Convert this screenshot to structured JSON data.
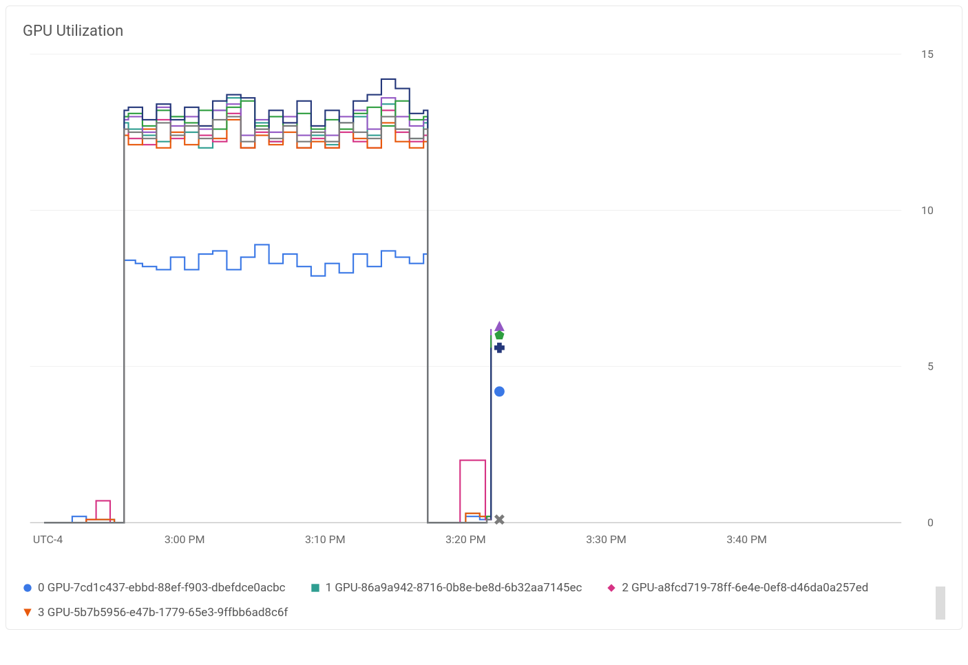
{
  "title": "GPU Utilization",
  "background_color": "#ffffff",
  "grid_color": "#f0f0f0",
  "baseline_color": "#c0c0c0",
  "text_color": "#666666",
  "line_width": 2,
  "chart": {
    "type": "line",
    "x_domain_minutes": [
      -11,
      51
    ],
    "x_ticks": [
      {
        "minute": 0,
        "label": "3:00 PM"
      },
      {
        "minute": 10,
        "label": "3:10 PM"
      },
      {
        "minute": 20,
        "label": "3:20 PM"
      },
      {
        "minute": 30,
        "label": "3:30 PM"
      },
      {
        "minute": 40,
        "label": "3:40 PM"
      }
    ],
    "tz_label": "UTC-4",
    "y_domain": [
      0,
      15
    ],
    "y_ticks": [
      0,
      5,
      10,
      15
    ]
  },
  "series": [
    {
      "id": "gpu-0",
      "marker": "circle",
      "color": "#3a78e6",
      "label": "0 GPU-7cd1c437-ebbd-88ef-f903-dbefdce0acbc",
      "points": [
        [
          -10,
          0
        ],
        [
          -8,
          0.2
        ],
        [
          -7,
          0.1
        ],
        [
          -5,
          0
        ],
        [
          -4.5,
          0
        ],
        [
          -4.3,
          8.4
        ],
        [
          -3.5,
          8.3
        ],
        [
          -3,
          8.2
        ],
        [
          -2,
          8.1
        ],
        [
          -1,
          8.5
        ],
        [
          0,
          8.1
        ],
        [
          1,
          8.6
        ],
        [
          2,
          8.7
        ],
        [
          3,
          8.1
        ],
        [
          4,
          8.5
        ],
        [
          5,
          8.9
        ],
        [
          6,
          8.3
        ],
        [
          7,
          8.6
        ],
        [
          8,
          8.2
        ],
        [
          9,
          7.9
        ],
        [
          10,
          8.3
        ],
        [
          11,
          8.0
        ],
        [
          12,
          8.6
        ],
        [
          13,
          8.2
        ],
        [
          14,
          8.7
        ],
        [
          15,
          8.5
        ],
        [
          16,
          8.3
        ],
        [
          17,
          8.6
        ],
        [
          17.2,
          8.6
        ],
        [
          17.3,
          0
        ],
        [
          19,
          0
        ],
        [
          19.2,
          0
        ],
        [
          20,
          0.2
        ],
        [
          21,
          0.1
        ],
        [
          21.5,
          0.1
        ],
        [
          21.7,
          0.1
        ],
        [
          21.8,
          4.2
        ]
      ],
      "end_marker": {
        "x": 22.4,
        "y": 4.2
      }
    },
    {
      "id": "gpu-1",
      "marker": "square",
      "color": "#2f9e91",
      "label": "1 GPU-86a9a942-8716-0b8e-be8d-6b32aa7145ec",
      "points": [
        [
          -10,
          0
        ],
        [
          -7,
          0.1
        ],
        [
          -5,
          0
        ],
        [
          -4.5,
          0
        ],
        [
          -4.3,
          12.8
        ],
        [
          -4,
          12.6
        ],
        [
          -3,
          12.4
        ],
        [
          -2,
          12.2
        ],
        [
          -1,
          13.0
        ],
        [
          0,
          12.5
        ],
        [
          1,
          12.0
        ],
        [
          2,
          13.2
        ],
        [
          3,
          13.6
        ],
        [
          4,
          12.0
        ],
        [
          5,
          12.8
        ],
        [
          6,
          12.2
        ],
        [
          7,
          12.7
        ],
        [
          8,
          12.0
        ],
        [
          9,
          12.4
        ],
        [
          10,
          12.1
        ],
        [
          11,
          12.8
        ],
        [
          12,
          13.0
        ],
        [
          13,
          12.4
        ],
        [
          14,
          13.4
        ],
        [
          15,
          12.6
        ],
        [
          16,
          12.3
        ],
        [
          17,
          12.8
        ],
        [
          17.2,
          12.8
        ],
        [
          17.3,
          0
        ],
        [
          19,
          0
        ],
        [
          20,
          0.3
        ],
        [
          21,
          0.2
        ],
        [
          21.5,
          0.2
        ],
        [
          21.7,
          0.2
        ],
        [
          21.8,
          5.8
        ]
      ]
    },
    {
      "id": "gpu-2",
      "marker": "diamond",
      "color": "#d63384",
      "label": "2 GPU-a8fcd719-78ff-6e4e-0ef8-d46da0a257ed",
      "points": [
        [
          -10,
          0
        ],
        [
          -7,
          0.1
        ],
        [
          -6.5,
          0.1
        ],
        [
          -6.3,
          0.7
        ],
        [
          -5.5,
          0.7
        ],
        [
          -5.3,
          0
        ],
        [
          -4.5,
          0
        ],
        [
          -4.3,
          12.6
        ],
        [
          -4,
          12.3
        ],
        [
          -3,
          12.1
        ],
        [
          -2,
          12.9
        ],
        [
          -1,
          12.3
        ],
        [
          0,
          12.7
        ],
        [
          1,
          12.4
        ],
        [
          2,
          12.2
        ],
        [
          3,
          13.1
        ],
        [
          4,
          12.0
        ],
        [
          5,
          12.5
        ],
        [
          6,
          12.2
        ],
        [
          7,
          12.8
        ],
        [
          8,
          12.0
        ],
        [
          9,
          12.3
        ],
        [
          10,
          12.0
        ],
        [
          11,
          12.5
        ],
        [
          12,
          12.2
        ],
        [
          13,
          12.0
        ],
        [
          14,
          13.2
        ],
        [
          15,
          12.5
        ],
        [
          16,
          12.2
        ],
        [
          17,
          12.4
        ],
        [
          17.2,
          12.4
        ],
        [
          17.3,
          0
        ],
        [
          19,
          0
        ],
        [
          19.5,
          0
        ],
        [
          19.6,
          2.0
        ],
        [
          21.3,
          2.0
        ],
        [
          21.4,
          0.1
        ],
        [
          21.7,
          0.1
        ],
        [
          21.8,
          5.9
        ]
      ]
    },
    {
      "id": "gpu-3",
      "marker": "triangle-down",
      "color": "#e8590c",
      "label": "3 GPU-5b7b5956-e47b-1779-65e3-9ffbb6ad8c6f",
      "points": [
        [
          -10,
          0
        ],
        [
          -7,
          0.1
        ],
        [
          -5,
          0
        ],
        [
          -4.5,
          0
        ],
        [
          -4.3,
          12.4
        ],
        [
          -4,
          12.1
        ],
        [
          -3,
          12.6
        ],
        [
          -2,
          12.0
        ],
        [
          -1,
          12.5
        ],
        [
          0,
          12.1
        ],
        [
          1,
          12.7
        ],
        [
          2,
          12.3
        ],
        [
          3,
          12.9
        ],
        [
          4,
          12.0
        ],
        [
          5,
          12.4
        ],
        [
          6,
          12.1
        ],
        [
          7,
          12.5
        ],
        [
          8,
          12.0
        ],
        [
          9,
          12.2
        ],
        [
          10,
          12.0
        ],
        [
          11,
          12.6
        ],
        [
          12,
          12.3
        ],
        [
          13,
          12.0
        ],
        [
          14,
          12.8
        ],
        [
          15,
          12.2
        ],
        [
          16,
          12.0
        ],
        [
          17,
          12.2
        ],
        [
          17.2,
          12.2
        ],
        [
          17.3,
          0
        ],
        [
          19,
          0
        ],
        [
          20,
          0.3
        ],
        [
          21,
          0.2
        ],
        [
          21.5,
          0.2
        ],
        [
          21.7,
          0.2
        ],
        [
          21.8,
          5.7
        ]
      ]
    },
    {
      "id": "gpu-4",
      "marker": "triangle-up",
      "color": "#9358c4",
      "label": "",
      "points": [
        [
          -10,
          0
        ],
        [
          -5,
          0
        ],
        [
          -4.5,
          0
        ],
        [
          -4.3,
          12.9
        ],
        [
          -4,
          13.0
        ],
        [
          -3,
          12.5
        ],
        [
          -2,
          13.3
        ],
        [
          -1,
          12.7
        ],
        [
          0,
          13.0
        ],
        [
          1,
          12.6
        ],
        [
          2,
          13.2
        ],
        [
          3,
          13.4
        ],
        [
          4,
          12.4
        ],
        [
          5,
          12.9
        ],
        [
          6,
          12.5
        ],
        [
          7,
          13.0
        ],
        [
          8,
          12.4
        ],
        [
          9,
          12.7
        ],
        [
          10,
          12.4
        ],
        [
          11,
          13.0
        ],
        [
          12,
          13.2
        ],
        [
          13,
          12.6
        ],
        [
          14,
          13.6
        ],
        [
          15,
          13.0
        ],
        [
          16,
          12.7
        ],
        [
          17,
          12.9
        ],
        [
          17.2,
          12.9
        ],
        [
          17.3,
          0
        ],
        [
          19,
          0
        ],
        [
          21.5,
          0.2
        ],
        [
          21.7,
          0.2
        ],
        [
          21.8,
          6.2
        ]
      ],
      "end_marker": {
        "x": 22.4,
        "y": 6.3
      }
    },
    {
      "id": "gpu-5",
      "marker": "pentagon",
      "color": "#2e9e3f",
      "label": "",
      "points": [
        [
          -10,
          0
        ],
        [
          -5,
          0
        ],
        [
          -4.5,
          0
        ],
        [
          -4.3,
          13.0
        ],
        [
          -4,
          13.1
        ],
        [
          -3,
          12.7
        ],
        [
          -2,
          13.2
        ],
        [
          -1,
          13.0
        ],
        [
          0,
          12.8
        ],
        [
          1,
          13.2
        ],
        [
          2,
          12.6
        ],
        [
          3,
          13.3
        ],
        [
          4,
          13.5
        ],
        [
          5,
          12.7
        ],
        [
          6,
          13.0
        ],
        [
          7,
          12.7
        ],
        [
          8,
          13.1
        ],
        [
          9,
          12.6
        ],
        [
          10,
          12.9
        ],
        [
          11,
          12.6
        ],
        [
          12,
          13.1
        ],
        [
          13,
          13.3
        ],
        [
          14,
          12.7
        ],
        [
          15,
          13.5
        ],
        [
          16,
          12.9
        ],
        [
          17,
          13.0
        ],
        [
          17.2,
          13.0
        ],
        [
          17.3,
          0
        ],
        [
          19,
          0
        ],
        [
          21.5,
          0.2
        ],
        [
          21.7,
          0.2
        ],
        [
          21.8,
          6.0
        ]
      ],
      "end_marker": {
        "x": 22.4,
        "y": 6.0
      }
    },
    {
      "id": "gpu-6",
      "marker": "plus",
      "color": "#24377a",
      "label": "",
      "points": [
        [
          -10,
          0
        ],
        [
          -5,
          0
        ],
        [
          -4.5,
          0
        ],
        [
          -4.3,
          13.2
        ],
        [
          -4,
          13.3
        ],
        [
          -3,
          12.9
        ],
        [
          -2,
          13.4
        ],
        [
          -1,
          12.9
        ],
        [
          0,
          13.3
        ],
        [
          1,
          12.7
        ],
        [
          2,
          13.5
        ],
        [
          3,
          13.7
        ],
        [
          4,
          13.6
        ],
        [
          5,
          12.6
        ],
        [
          6,
          13.2
        ],
        [
          7,
          12.8
        ],
        [
          8,
          13.5
        ],
        [
          9,
          12.7
        ],
        [
          10,
          13.2
        ],
        [
          11,
          12.8
        ],
        [
          12,
          13.5
        ],
        [
          13,
          13.7
        ],
        [
          14,
          14.2
        ],
        [
          15,
          13.9
        ],
        [
          16,
          13.1
        ],
        [
          17,
          13.2
        ],
        [
          17.2,
          13.2
        ],
        [
          17.3,
          0
        ],
        [
          19,
          0
        ],
        [
          21.5,
          0.1
        ],
        [
          21.7,
          0.1
        ],
        [
          21.8,
          5.6
        ]
      ],
      "end_marker": {
        "x": 22.4,
        "y": 5.6
      }
    },
    {
      "id": "gpu-7",
      "marker": "cross",
      "color": "#7a7a7a",
      "label": "",
      "points": [
        [
          -10,
          0
        ],
        [
          -5,
          0
        ],
        [
          -4.5,
          0
        ],
        [
          -4.3,
          12.6
        ],
        [
          -4,
          12.5
        ],
        [
          -3,
          12.3
        ],
        [
          -2,
          12.8
        ],
        [
          -1,
          12.4
        ],
        [
          0,
          12.7
        ],
        [
          1,
          12.3
        ],
        [
          2,
          12.9
        ],
        [
          3,
          13.0
        ],
        [
          4,
          12.2
        ],
        [
          5,
          12.6
        ],
        [
          6,
          12.3
        ],
        [
          7,
          12.7
        ],
        [
          8,
          12.2
        ],
        [
          9,
          12.5
        ],
        [
          10,
          12.2
        ],
        [
          11,
          12.8
        ],
        [
          12,
          12.5
        ],
        [
          13,
          12.3
        ],
        [
          14,
          13.0
        ],
        [
          15,
          12.6
        ],
        [
          16,
          12.3
        ],
        [
          17,
          12.6
        ],
        [
          17.2,
          12.6
        ],
        [
          17.3,
          0
        ],
        [
          19,
          0
        ],
        [
          21.5,
          0.1
        ],
        [
          21.7,
          0.1
        ],
        [
          21.8,
          0.1
        ]
      ],
      "end_marker": {
        "x": 22.4,
        "y": 0.1
      }
    }
  ],
  "legend_visible_count": 4
}
